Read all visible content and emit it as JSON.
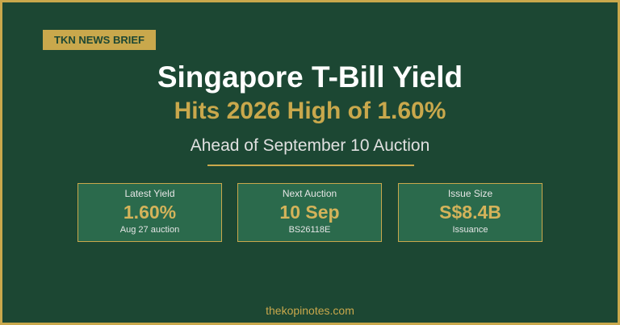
{
  "badge": "TKN NEWS BRIEF",
  "header": {
    "title": "Singapore T-Bill Yield",
    "subtitle": "Hits 2026 High of 1.60%",
    "tagline": "Ahead of September 10 Auction"
  },
  "stats": [
    {
      "label": "Latest Yield",
      "value": "1.60%",
      "note": "Aug 27 auction"
    },
    {
      "label": "Next Auction",
      "value": "10 Sep",
      "note": "BS26118E"
    },
    {
      "label": "Issue Size",
      "value": "S$8.4B",
      "note": "Issuance"
    }
  ],
  "footer": "thekopinotes.com"
}
